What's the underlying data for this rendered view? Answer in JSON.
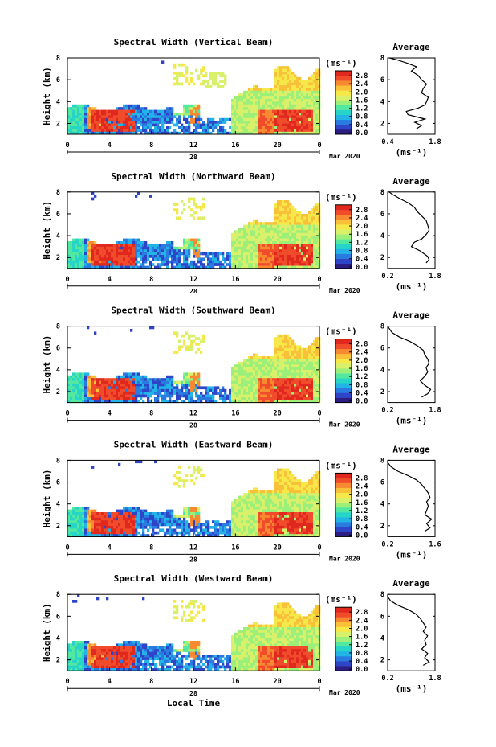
{
  "chart_data": [
    {
      "type": "heatmap",
      "title": "Spectral Width (Vertical Beam)",
      "ylabel": "Height (km)",
      "xlim": [
        0,
        24
      ],
      "ylim": [
        1,
        8
      ],
      "x_ticks": [
        "0",
        "4",
        "8",
        "12",
        "16",
        "20",
        "0"
      ],
      "y_ticks": [
        "2",
        "4",
        "6",
        "8"
      ],
      "day_label": "28",
      "month_label": "Mar 2020",
      "colorbar": {
        "unit": "(ms⁻¹)",
        "ticks": [
          "2.8",
          "2.4",
          "2.0",
          "1.6",
          "1.2",
          "0.8",
          "0.4",
          "0.0"
        ],
        "range": [
          0.0,
          2.8
        ]
      },
      "profile": {
        "title": "Average",
        "xlim": [
          0.4,
          1.8
        ],
        "x_ticks": [
          "0.4",
          "1.8"
        ],
        "y_ticks": [
          "2",
          "4",
          "6",
          "8"
        ],
        "xlabel": "(ms⁻¹)",
        "points": [
          [
            1.25,
            1.5
          ],
          [
            1.4,
            1.8
          ],
          [
            1.2,
            2.1
          ],
          [
            1.5,
            2.4
          ],
          [
            1.0,
            2.8
          ],
          [
            0.95,
            3.1
          ],
          [
            1.3,
            3.4
          ],
          [
            1.5,
            3.7
          ],
          [
            1.55,
            4.0
          ],
          [
            1.6,
            4.4
          ],
          [
            1.4,
            4.8
          ],
          [
            1.45,
            5.2
          ],
          [
            1.55,
            5.6
          ],
          [
            1.4,
            6.0
          ],
          [
            1.3,
            6.4
          ],
          [
            1.1,
            6.8
          ],
          [
            1.25,
            7.2
          ],
          [
            1.0,
            7.5
          ],
          [
            0.7,
            7.8
          ],
          [
            0.45,
            8.0
          ]
        ]
      }
    },
    {
      "type": "heatmap",
      "title": "Spectral Width (Northward Beam)",
      "ylabel": "Height (km)",
      "xlim": [
        0,
        24
      ],
      "ylim": [
        1,
        8
      ],
      "x_ticks": [
        "0",
        "4",
        "8",
        "12",
        "16",
        "20",
        "0"
      ],
      "y_ticks": [
        "2",
        "4",
        "6",
        "8"
      ],
      "day_label": "28",
      "month_label": "Mar 2020",
      "colorbar": {
        "unit": "(ms⁻¹)",
        "ticks": [
          "2.8",
          "2.4",
          "2.0",
          "1.6",
          "1.2",
          "0.8",
          "0.4",
          "0.0"
        ],
        "range": [
          0.0,
          2.8
        ]
      },
      "profile": {
        "title": "Average",
        "xlim": [
          0.2,
          1.8
        ],
        "x_ticks": [
          "0.2",
          "1.8"
        ],
        "y_ticks": [
          "2",
          "4",
          "6",
          "8"
        ],
        "xlabel": "(ms⁻¹)",
        "points": [
          [
            1.5,
            1.5
          ],
          [
            1.6,
            1.8
          ],
          [
            1.55,
            2.1
          ],
          [
            1.3,
            2.6
          ],
          [
            1.0,
            3.0
          ],
          [
            1.1,
            3.4
          ],
          [
            1.35,
            3.7
          ],
          [
            1.5,
            4.1
          ],
          [
            1.6,
            4.5
          ],
          [
            1.55,
            5.0
          ],
          [
            1.5,
            5.4
          ],
          [
            1.35,
            5.8
          ],
          [
            1.2,
            6.2
          ],
          [
            1.1,
            6.6
          ],
          [
            0.9,
            7.0
          ],
          [
            0.6,
            7.4
          ],
          [
            0.35,
            7.8
          ],
          [
            0.25,
            8.0
          ]
        ]
      }
    },
    {
      "type": "heatmap",
      "title": "Spectral Width (Southward Beam)",
      "ylabel": "Height (km)",
      "xlim": [
        0,
        24
      ],
      "ylim": [
        1,
        8
      ],
      "x_ticks": [
        "0",
        "4",
        "8",
        "12",
        "16",
        "20",
        "0"
      ],
      "y_ticks": [
        "2",
        "4",
        "6",
        "8"
      ],
      "day_label": "28",
      "month_label": "Mar 2020",
      "colorbar": {
        "unit": "(ms⁻¹)",
        "ticks": [
          "2.8",
          "2.4",
          "2.0",
          "1.6",
          "1.2",
          "0.8",
          "0.4",
          "0.0"
        ],
        "range": [
          0.0,
          2.8
        ]
      },
      "profile": {
        "title": "Average",
        "xlim": [
          0.2,
          1.8
        ],
        "x_ticks": [
          "0.2",
          "1.8"
        ],
        "y_ticks": [
          "2",
          "4",
          "6",
          "8"
        ],
        "xlabel": "(ms⁻¹)",
        "points": [
          [
            1.35,
            1.5
          ],
          [
            1.55,
            1.8
          ],
          [
            1.65,
            2.2
          ],
          [
            1.45,
            2.6
          ],
          [
            1.3,
            3.0
          ],
          [
            1.45,
            3.4
          ],
          [
            1.55,
            3.8
          ],
          [
            1.5,
            4.2
          ],
          [
            1.6,
            4.6
          ],
          [
            1.55,
            5.0
          ],
          [
            1.45,
            5.4
          ],
          [
            1.4,
            5.8
          ],
          [
            1.2,
            6.2
          ],
          [
            0.95,
            6.6
          ],
          [
            0.6,
            7.0
          ],
          [
            0.35,
            7.4
          ],
          [
            0.25,
            7.8
          ],
          [
            0.2,
            8.0
          ]
        ]
      }
    },
    {
      "type": "heatmap",
      "title": "Spectral Width (Eastward Beam)",
      "ylabel": "Height (km)",
      "xlim": [
        0,
        24
      ],
      "ylim": [
        1,
        8
      ],
      "x_ticks": [
        "0",
        "4",
        "8",
        "12",
        "16",
        "20",
        "0"
      ],
      "y_ticks": [
        "2",
        "4",
        "6",
        "8"
      ],
      "day_label": "28",
      "month_label": "Mar 2020",
      "colorbar": {
        "unit": "(ms⁻¹)",
        "ticks": [
          "2.8",
          "2.4",
          "2.0",
          "1.6",
          "1.2",
          "0.8",
          "0.4",
          "0.0"
        ],
        "range": [
          0.0,
          2.8
        ]
      },
      "profile": {
        "title": "Average",
        "xlim": [
          0.2,
          1.6
        ],
        "x_ticks": [
          "0.2",
          "1.6"
        ],
        "y_ticks": [
          "2",
          "4",
          "6",
          "8"
        ],
        "xlabel": "(ms⁻¹)",
        "points": [
          [
            1.3,
            1.5
          ],
          [
            1.45,
            1.8
          ],
          [
            1.35,
            2.2
          ],
          [
            1.5,
            2.6
          ],
          [
            1.3,
            3.0
          ],
          [
            1.35,
            3.4
          ],
          [
            1.4,
            3.8
          ],
          [
            1.35,
            4.2
          ],
          [
            1.45,
            4.6
          ],
          [
            1.4,
            5.0
          ],
          [
            1.3,
            5.4
          ],
          [
            1.2,
            5.8
          ],
          [
            1.05,
            6.2
          ],
          [
            0.8,
            6.6
          ],
          [
            0.5,
            7.0
          ],
          [
            0.3,
            7.4
          ],
          [
            0.2,
            7.8
          ],
          [
            0.2,
            8.0
          ]
        ]
      }
    },
    {
      "type": "heatmap",
      "title": "Spectral Width (Westward Beam)",
      "ylabel": "Height (km)",
      "xlim": [
        0,
        24
      ],
      "ylim": [
        1,
        8
      ],
      "x_ticks": [
        "0",
        "4",
        "8",
        "12",
        "16",
        "20",
        "0"
      ],
      "y_ticks": [
        "2",
        "4",
        "6",
        "8"
      ],
      "day_label": "28",
      "month_label": "Mar 2020",
      "xlabel": "Local Time",
      "colorbar": {
        "unit": "(ms⁻¹)",
        "ticks": [
          "2.8",
          "2.4",
          "2.0",
          "1.6",
          "1.2",
          "0.8",
          "0.4",
          "0.0"
        ],
        "range": [
          0.0,
          2.8
        ]
      },
      "profile": {
        "title": "Average",
        "xlim": [
          0.2,
          1.8
        ],
        "x_ticks": [
          "0.2",
          "1.8"
        ],
        "y_ticks": [
          "2",
          "4",
          "6",
          "8"
        ],
        "xlabel": "(ms⁻¹)",
        "points": [
          [
            1.4,
            1.5
          ],
          [
            1.6,
            1.8
          ],
          [
            1.45,
            2.2
          ],
          [
            1.55,
            2.6
          ],
          [
            1.35,
            3.0
          ],
          [
            1.5,
            3.4
          ],
          [
            1.45,
            3.8
          ],
          [
            1.55,
            4.2
          ],
          [
            1.4,
            4.6
          ],
          [
            1.5,
            5.0
          ],
          [
            1.4,
            5.4
          ],
          [
            1.3,
            5.8
          ],
          [
            1.15,
            6.2
          ],
          [
            0.9,
            6.6
          ],
          [
            0.55,
            7.0
          ],
          [
            0.3,
            7.4
          ],
          [
            0.2,
            7.8
          ],
          [
            0.2,
            8.0
          ]
        ]
      }
    }
  ],
  "colormap": [
    "#2b1d82",
    "#2f45c8",
    "#2a7be0",
    "#22b4e6",
    "#26d4c8",
    "#52e8a0",
    "#9cf07a",
    "#d8f06a",
    "#f7e84a",
    "#f9c03a",
    "#f78a30",
    "#f04c2c",
    "#e0281e"
  ]
}
